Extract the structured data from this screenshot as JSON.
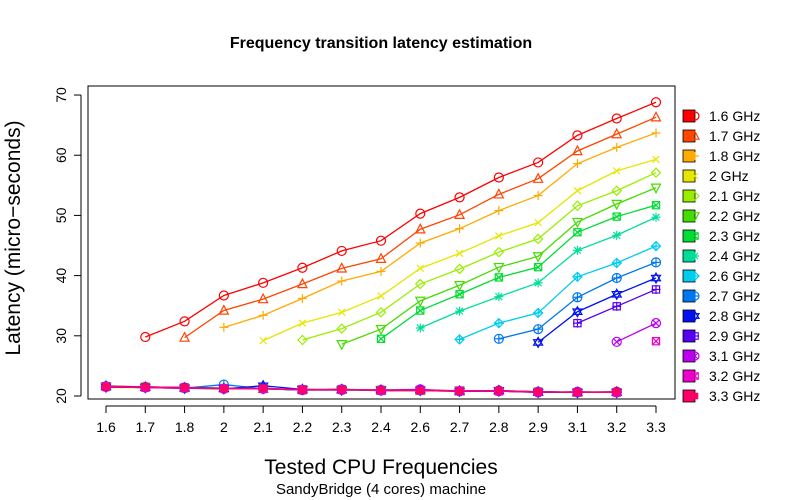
{
  "chart_data": {
    "type": "line",
    "title": "Frequency transition latency estimation",
    "xlabel": "Tested CPU Frequencies",
    "subtitle": "SandyBridge (4 cores) machine",
    "ylabel": "Latency (micro−seconds)",
    "categories": [
      "1.6",
      "1.7",
      "1.8",
      "2",
      "2.1",
      "2.2",
      "2.3",
      "2.4",
      "2.6",
      "2.7",
      "2.8",
      "2.9",
      "3.1",
      "3.2",
      "3.3"
    ],
    "yticks": [
      20,
      30,
      40,
      50,
      60,
      70
    ],
    "ylim": [
      19.5,
      71.5
    ],
    "grid": false,
    "legend_position": "right",
    "series": [
      {
        "name": "1.6 GHz",
        "color": "#ff0000",
        "marker": "circle",
        "values": [
          null,
          29.8,
          32.4,
          36.7,
          38.8,
          41.3,
          44.1,
          45.8,
          50.3,
          53.0,
          56.3,
          58.8,
          63.3,
          66.1,
          68.8
        ],
        "low": [
          21.6,
          21.5,
          21.4,
          21.2,
          21.3,
          21.0,
          21.1,
          20.9,
          21.0,
          20.8,
          20.9,
          20.7,
          20.6,
          20.7,
          null
        ]
      },
      {
        "name": "1.7 GHz",
        "color": "#ff4500",
        "marker": "triangle-up",
        "values": [
          null,
          null,
          29.7,
          34.2,
          36.1,
          38.6,
          41.2,
          42.8,
          47.7,
          50.1,
          53.5,
          56.1,
          60.7,
          63.5,
          66.3
        ],
        "low": [
          21.7,
          21.5,
          21.4,
          21.3,
          21.2,
          21.0,
          21.1,
          20.9,
          20.9,
          20.8,
          20.9,
          20.7,
          20.6,
          20.7,
          null
        ]
      },
      {
        "name": "1.8 GHz",
        "color": "#ffaa00",
        "marker": "plus",
        "values": [
          null,
          null,
          null,
          31.4,
          33.4,
          36.2,
          39.1,
          40.7,
          45.4,
          47.8,
          50.8,
          53.3,
          58.6,
          61.3,
          63.7
        ],
        "low": [
          21.5,
          21.4,
          21.3,
          21.2,
          21.3,
          21.0,
          21.1,
          21.0,
          20.9,
          20.8,
          20.9,
          20.6,
          20.7,
          20.6,
          null
        ]
      },
      {
        "name": "2 GHz",
        "color": "#e6e600",
        "marker": "cross",
        "values": [
          null,
          null,
          null,
          null,
          29.2,
          32.1,
          33.9,
          36.6,
          41.2,
          43.7,
          46.6,
          48.8,
          54.1,
          57.4,
          59.3
        ],
        "low": [
          21.4,
          21.4,
          21.3,
          21.2,
          21.2,
          21.0,
          21.0,
          20.9,
          21.0,
          20.8,
          20.8,
          20.7,
          20.6,
          20.6,
          null
        ]
      },
      {
        "name": "2.1 GHz",
        "color": "#99ee00",
        "marker": "diamond",
        "values": [
          null,
          null,
          null,
          null,
          null,
          29.3,
          31.2,
          33.9,
          38.6,
          41.1,
          43.9,
          46.1,
          51.6,
          54.1,
          57.1
        ],
        "low": [
          21.5,
          21.4,
          21.3,
          21.3,
          21.2,
          21.0,
          21.1,
          20.9,
          20.9,
          20.8,
          20.8,
          20.6,
          20.6,
          20.6,
          null
        ]
      },
      {
        "name": "2.2 GHz",
        "color": "#44dd00",
        "marker": "triangle-down",
        "values": [
          null,
          null,
          null,
          null,
          null,
          null,
          28.6,
          31.1,
          35.8,
          38.4,
          41.4,
          43.2,
          48.9,
          51.9,
          54.6
        ],
        "low": [
          21.6,
          21.5,
          21.3,
          21.2,
          21.2,
          21.1,
          21.0,
          21.0,
          20.9,
          20.9,
          20.8,
          20.7,
          20.6,
          20.6,
          null
        ]
      },
      {
        "name": "2.3 GHz",
        "color": "#00dd33",
        "marker": "square-cross",
        "values": [
          null,
          null,
          null,
          null,
          null,
          null,
          null,
          29.5,
          34.2,
          36.9,
          39.7,
          41.4,
          47.2,
          49.8,
          51.7
        ],
        "low": [
          21.5,
          21.4,
          21.4,
          21.3,
          21.2,
          21.0,
          21.0,
          21.0,
          21.0,
          20.8,
          20.8,
          20.7,
          20.6,
          20.6,
          null
        ]
      },
      {
        "name": "2.4 GHz",
        "color": "#00dd99",
        "marker": "asterisk",
        "values": [
          null,
          null,
          null,
          null,
          null,
          null,
          null,
          null,
          31.3,
          34.1,
          36.5,
          38.8,
          44.2,
          46.7,
          49.7
        ],
        "low": [
          21.6,
          21.5,
          21.3,
          21.2,
          21.2,
          21.0,
          21.1,
          20.9,
          21.0,
          20.8,
          20.8,
          20.6,
          20.7,
          20.6,
          null
        ]
      },
      {
        "name": "2.6 GHz",
        "color": "#00ccee",
        "marker": "diamond-plus",
        "values": [
          null,
          null,
          null,
          null,
          null,
          null,
          null,
          null,
          null,
          29.4,
          32.1,
          33.8,
          39.8,
          42.1,
          44.9
        ],
        "low": [
          21.5,
          21.4,
          21.4,
          21.3,
          21.2,
          21.0,
          21.0,
          21.0,
          21.0,
          20.8,
          20.9,
          20.7,
          20.6,
          20.7,
          null
        ]
      },
      {
        "name": "2.7 GHz",
        "color": "#0077ee",
        "marker": "circle-plus",
        "values": [
          null,
          null,
          null,
          null,
          null,
          null,
          null,
          null,
          null,
          null,
          29.5,
          31.1,
          36.4,
          39.6,
          42.2
        ],
        "low": [
          21.6,
          21.4,
          21.3,
          21.9,
          21.2,
          21.0,
          21.1,
          20.9,
          20.9,
          20.8,
          20.8,
          20.7,
          20.6,
          20.6,
          null
        ]
      },
      {
        "name": "2.8 GHz",
        "color": "#0011ee",
        "marker": "hexagram",
        "values": [
          null,
          null,
          null,
          null,
          null,
          null,
          null,
          null,
          null,
          null,
          null,
          28.9,
          34.0,
          36.9,
          39.6
        ],
        "low": [
          21.5,
          21.4,
          21.3,
          21.2,
          21.7,
          21.1,
          21.0,
          21.0,
          21.0,
          20.8,
          20.9,
          20.6,
          20.6,
          20.6,
          null
        ]
      },
      {
        "name": "2.9 GHz",
        "color": "#5500ee",
        "marker": "square-plus",
        "values": [
          null,
          null,
          null,
          null,
          null,
          null,
          null,
          null,
          null,
          null,
          null,
          null,
          32.1,
          34.9,
          37.7
        ],
        "low": [
          21.6,
          21.5,
          21.4,
          21.3,
          21.2,
          21.0,
          21.1,
          20.9,
          21.0,
          20.8,
          20.8,
          20.7,
          20.6,
          20.6,
          null
        ]
      },
      {
        "name": "3.1 GHz",
        "color": "#bb00ee",
        "marker": "circle-cross",
        "values": [
          null,
          null,
          null,
          null,
          null,
          null,
          null,
          null,
          null,
          null,
          null,
          null,
          null,
          29.0,
          32.1
        ],
        "low": [
          21.5,
          21.4,
          21.4,
          21.2,
          21.2,
          21.0,
          21.0,
          21.0,
          21.1,
          20.8,
          20.8,
          20.6,
          20.7,
          20.6,
          null
        ]
      },
      {
        "name": "3.2 GHz",
        "color": "#ee00cc",
        "marker": "square-x",
        "values": [
          null,
          null,
          null,
          null,
          null,
          null,
          null,
          null,
          null,
          null,
          null,
          null,
          null,
          null,
          29.1
        ],
        "low": [
          21.6,
          21.4,
          21.3,
          21.3,
          21.2,
          21.1,
          21.1,
          20.9,
          20.9,
          20.9,
          20.8,
          20.7,
          20.6,
          20.6,
          null
        ]
      },
      {
        "name": "3.3 GHz",
        "color": "#ff0066",
        "marker": "square-filled",
        "values": [
          null,
          null,
          null,
          null,
          null,
          null,
          null,
          null,
          null,
          null,
          null,
          null,
          null,
          null,
          null
        ],
        "low": [
          21.5,
          21.5,
          21.4,
          21.2,
          21.3,
          21.0,
          21.1,
          21.0,
          20.9,
          20.8,
          20.9,
          20.7,
          20.6,
          20.7,
          null
        ]
      }
    ]
  }
}
